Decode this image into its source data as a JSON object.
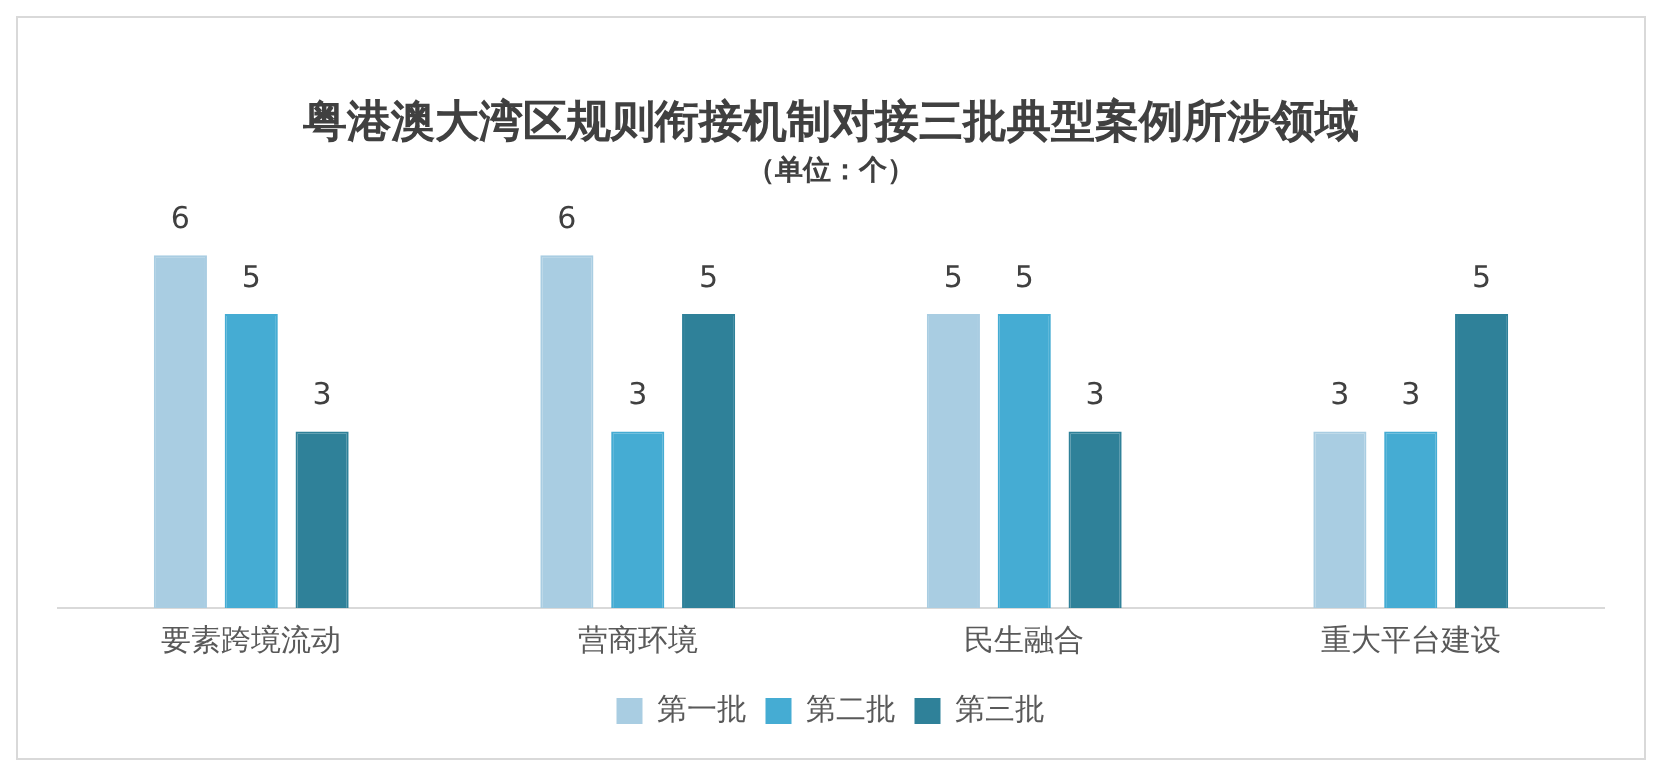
{
  "chart_data": {
    "type": "bar",
    "title": "粤港澳大湾区规则衔接机制对接三批典型案例所涉领域",
    "subtitle": "（单位：个）",
    "categories": [
      "要素跨境流动",
      "营商环境",
      "民生融合",
      "重大平台建设"
    ],
    "series": [
      {
        "name": "第一批",
        "color": "#a9cde2",
        "values": [
          6,
          6,
          5,
          3
        ]
      },
      {
        "name": "第二批",
        "color": "#45acd3",
        "values": [
          5,
          3,
          5,
          3
        ]
      },
      {
        "name": "第三批",
        "color": "#2f8199",
        "values": [
          3,
          5,
          3,
          5
        ]
      }
    ],
    "data_labels": true,
    "legend": "bottom",
    "grid": false
  }
}
